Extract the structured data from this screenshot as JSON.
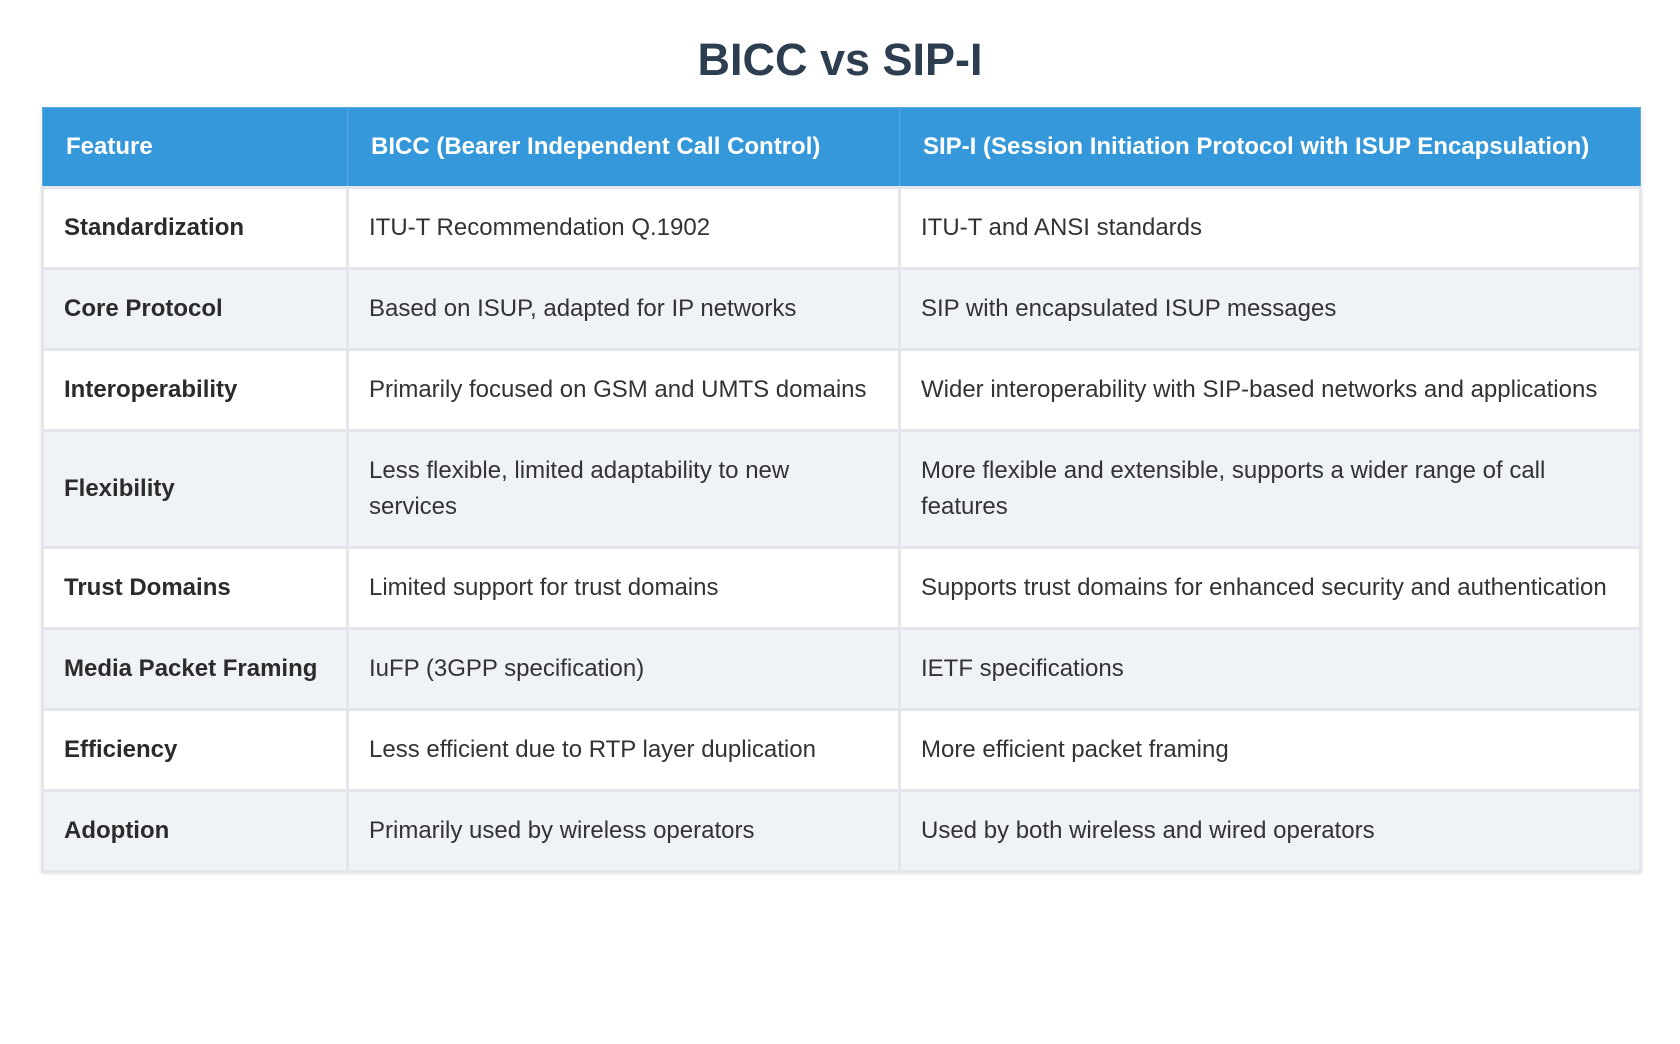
{
  "header": {
    "title": "BICC vs SIP-I"
  },
  "table": {
    "columns": [
      "Feature",
      "BICC (Bearer Independent Call Control)",
      "SIP-I (Session Initiation Protocol with ISUP Encapsulation)"
    ],
    "rows": [
      [
        "Standardization",
        "ITU-T Recommendation Q.1902",
        "ITU-T and ANSI standards"
      ],
      [
        "Core Protocol",
        "Based on ISUP, adapted for IP networks",
        "SIP with encapsulated ISUP messages"
      ],
      [
        "Interoperability",
        "Primarily focused on GSM and UMTS domains",
        "Wider interoperability with SIP-based networks and applications"
      ],
      [
        "Flexibility",
        "Less flexible, limited adaptability to new services",
        "More flexible and extensible, supports a wider range of call features"
      ],
      [
        "Trust Domains",
        "Limited support for trust domains",
        "Supports trust domains for enhanced security and authentication"
      ],
      [
        "Media Packet Framing",
        "IuFP (3GPP specification)",
        "IETF specifications"
      ],
      [
        "Efficiency",
        "Less efficient due to RTP layer duplication",
        "More efficient packet framing"
      ],
      [
        "Adoption",
        "Primarily used by wireless operators",
        "Used by both wireless and wired operators"
      ]
    ]
  }
}
